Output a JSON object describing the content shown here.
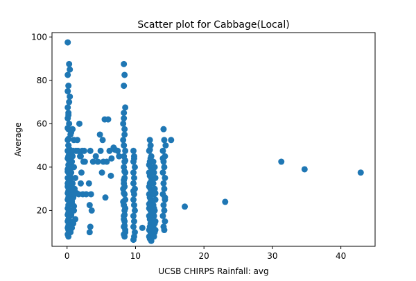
{
  "chart_data": {
    "type": "scatter",
    "title": "Scatter plot for Cabbage(Local)",
    "xlabel": "UCSB CHIRPS Rainfall: avg",
    "ylabel": "Average",
    "xlim": [
      -2.2,
      45.0
    ],
    "ylim": [
      3.5,
      102.0
    ],
    "xticks": [
      0,
      10,
      20,
      30,
      40
    ],
    "yticks": [
      20,
      40,
      60,
      80,
      100
    ],
    "grid": false,
    "point_color": "#1f77b4",
    "x": [
      0.1,
      0.3,
      0.1,
      0.2,
      0.4,
      0.1,
      0.2,
      0.1,
      0.3,
      0.2,
      0.5,
      0.1,
      0.2,
      0.4,
      0.1,
      0.3,
      0.2,
      0.1,
      0.6,
      0.2,
      0.3,
      0.1,
      0.2,
      0.4,
      0.1,
      0.2,
      0.3,
      0.1,
      0.5,
      0.2,
      0.1,
      0.3,
      0.2,
      0.1,
      0.4,
      0.2,
      0.1,
      0.3,
      0.2,
      0.1,
      0.4,
      0.2,
      0.1,
      0.3,
      0.2,
      0.5,
      0.1,
      0.2,
      0.3,
      0.1,
      0.2,
      0.4,
      0.1,
      0.3,
      0.2,
      0.1,
      0.2,
      0.3,
      0.1,
      0.4,
      0.6,
      0.2,
      0.1,
      0.3,
      0.5,
      0.7,
      0.2,
      0.4,
      0.1,
      0.3,
      0.6,
      0.9,
      0.8,
      0.7,
      1.0,
      0.6,
      1.2,
      0.8,
      1.1,
      1.4,
      0.9,
      0.7,
      1.0,
      0.8,
      0.6,
      1.2,
      0.9,
      0.7,
      0.5,
      0.8,
      1.0,
      1.3,
      0.6,
      0.9,
      1.1,
      0.7,
      0.8,
      1.0,
      0.6,
      0.9,
      1.6,
      2.0,
      2.4,
      1.8,
      2.2,
      2.6,
      1.5,
      2.3,
      1.9,
      2.1,
      2.5,
      1.7,
      2.0,
      2.8,
      3.4,
      3.8,
      3.2,
      3.5,
      3.3,
      3.6,
      3.4,
      3.3,
      4.2,
      4.5,
      4.8,
      5.2,
      5.5,
      4.9,
      5.1,
      5.3,
      5.6,
      6.0,
      6.2,
      6.4,
      6.8,
      7.0,
      7.4,
      7.6,
      5.8,
      6.5,
      8.3,
      8.4,
      8.3,
      8.5,
      8.3,
      8.4,
      8.2,
      8.5,
      8.3,
      8.4,
      8.3,
      8.5,
      8.4,
      8.3,
      8.2,
      8.4,
      8.5,
      8.3,
      8.4,
      8.3,
      8.4,
      8.3,
      8.5,
      8.4,
      8.3,
      8.2,
      8.4,
      8.3,
      8.5,
      8.4,
      8.3,
      8.4,
      8.3,
      8.2,
      8.5,
      8.4,
      8.3,
      8.4,
      8.5,
      8.3,
      9.7,
      9.8,
      9.7,
      9.9,
      9.7,
      9.8,
      9.7,
      9.9,
      9.8,
      9.7,
      9.8,
      9.9,
      9.7,
      9.8,
      9.7,
      9.9,
      9.8,
      9.7,
      9.8,
      9.7,
      11.0,
      12.1,
      12.2,
      12.0,
      12.3,
      12.1,
      12.2,
      12.0,
      12.3,
      12.1,
      12.2,
      12.0,
      12.3,
      12.1,
      12.2,
      12.0,
      12.3,
      12.1,
      12.2,
      12.0,
      12.3,
      12.1,
      12.2,
      12.0,
      12.3,
      12.1,
      12.2,
      12.0,
      12.3,
      12.1,
      12.2,
      12.0,
      12.3,
      12.1,
      12.2,
      12.0,
      12.3,
      12.1,
      12.2,
      12.0,
      12.6,
      12.8,
      12.7,
      12.9,
      12.6,
      12.8,
      12.7,
      12.9,
      12.6,
      12.8,
      12.7,
      12.9,
      12.6,
      12.8,
      12.7,
      12.9,
      12.6,
      12.8,
      12.7,
      12.9,
      14.1,
      14.2,
      14.0,
      14.3,
      14.1,
      14.2,
      14.0,
      14.3,
      14.1,
      14.2,
      14.0,
      14.3,
      14.1,
      14.2,
      14.0,
      14.3,
      14.1,
      14.2,
      14.0,
      14.3,
      14.4,
      15.2,
      17.2,
      23.1,
      31.3,
      34.7,
      42.9
    ],
    "y": [
      97.5,
      87.5,
      82.5,
      77.5,
      72.5,
      67.5,
      65.0,
      62.5,
      60.0,
      57.5,
      55.0,
      52.5,
      50.0,
      48.0,
      47.5,
      46.0,
      45.0,
      44.0,
      42.5,
      41.0,
      40.0,
      38.0,
      37.5,
      36.0,
      35.0,
      33.0,
      32.5,
      31.0,
      30.0,
      29.0,
      28.0,
      27.5,
      26.0,
      25.0,
      24.0,
      22.5,
      21.0,
      20.0,
      19.0,
      18.0,
      17.5,
      16.0,
      15.0,
      14.0,
      13.0,
      12.5,
      12.0,
      11.0,
      10.0,
      9.0,
      8.0,
      85.0,
      75.0,
      70.0,
      64.0,
      58.0,
      53.0,
      43.0,
      39.0,
      34.0,
      56.0,
      50.0,
      47.5,
      45.0,
      42.5,
      40.0,
      37.5,
      35.0,
      32.5,
      30.0,
      27.5,
      47.5,
      45.0,
      42.5,
      40.0,
      37.5,
      35.0,
      32.5,
      30.0,
      28.0,
      26.0,
      24.0,
      22.0,
      20.0,
      18.0,
      16.0,
      14.0,
      12.0,
      10.0,
      57.5,
      52.5,
      47.5,
      31.0,
      29.0,
      27.5,
      25.0,
      22.5,
      20.0,
      18.0,
      15.0,
      47.5,
      45.0,
      42.5,
      60.0,
      47.5,
      42.5,
      52.5,
      27.5,
      45.0,
      37.5,
      47.5,
      27.5,
      32.5,
      27.5,
      47.5,
      42.5,
      32.5,
      27.5,
      22.5,
      20.0,
      12.5,
      10.0,
      45.0,
      42.5,
      55.0,
      52.5,
      62.0,
      47.5,
      37.5,
      42.5,
      26.0,
      62.0,
      47.5,
      36.0,
      49.0,
      48.0,
      47.5,
      45.0,
      42.5,
      44.0,
      87.5,
      82.5,
      77.5,
      67.5,
      62.5,
      57.5,
      52.5,
      47.5,
      45.0,
      42.5,
      40.0,
      37.5,
      35.0,
      32.5,
      30.0,
      27.5,
      25.0,
      22.5,
      20.0,
      17.5,
      15.0,
      12.5,
      10.0,
      8.0,
      65.0,
      60.0,
      55.0,
      50.0,
      43.0,
      38.0,
      34.0,
      31.0,
      28.0,
      24.0,
      21.0,
      18.0,
      16.0,
      13.0,
      11.0,
      9.0,
      47.5,
      45.0,
      42.5,
      40.0,
      37.5,
      35.0,
      32.5,
      30.0,
      27.5,
      25.0,
      22.5,
      20.0,
      17.5,
      15.0,
      12.5,
      10.0,
      8.0,
      6.5,
      44.0,
      29.0,
      12.0,
      52.5,
      50.0,
      47.5,
      45.0,
      42.5,
      40.0,
      37.5,
      35.0,
      32.5,
      30.0,
      27.5,
      25.0,
      22.5,
      20.0,
      17.5,
      15.0,
      12.5,
      10.0,
      8.0,
      6.0,
      48.0,
      44.0,
      41.0,
      38.0,
      36.0,
      33.0,
      31.0,
      29.0,
      26.0,
      24.0,
      21.0,
      19.0,
      16.0,
      14.0,
      11.0,
      9.0,
      7.0,
      43.0,
      23.0,
      42.5,
      40.0,
      37.5,
      35.0,
      32.5,
      30.0,
      27.5,
      25.0,
      22.5,
      20.0,
      17.5,
      15.0,
      12.5,
      10.0,
      8.0,
      28.0,
      19.0,
      14.0,
      21.0,
      11.0,
      57.5,
      52.5,
      47.5,
      45.0,
      42.5,
      40.0,
      37.5,
      35.0,
      32.5,
      30.0,
      27.5,
      25.0,
      22.5,
      20.0,
      17.5,
      15.0,
      12.5,
      11.0,
      44.0,
      26.0,
      50.0,
      52.5,
      21.8,
      24.0,
      42.5,
      39.0,
      37.5
    ]
  }
}
